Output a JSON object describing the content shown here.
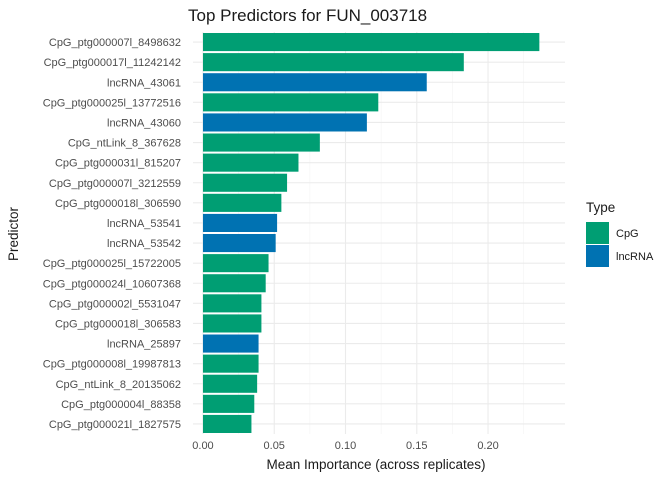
{
  "chart_data": {
    "type": "bar",
    "orientation": "horizontal",
    "title": "Top Predictors for FUN_003718",
    "xlabel": "Mean Importance (across replicates)",
    "ylabel": "Predictor",
    "xlim": [
      -0.007,
      0.254
    ],
    "xticks": [
      0.0,
      0.05,
      0.1,
      0.15,
      0.2
    ],
    "xtick_labels": [
      "0.00",
      "0.05",
      "0.10",
      "0.15",
      "0.20"
    ],
    "grid": true,
    "legend": {
      "title": "Type",
      "placement": "right",
      "entries": [
        {
          "label": "CpG",
          "color": "#009E73"
        },
        {
          "label": "lncRNA",
          "color": "#0072B2"
        }
      ]
    },
    "colors": {
      "CpG": "#009E73",
      "lncRNA": "#0072B2"
    },
    "bars": [
      {
        "label": "CpG_ptg000007l_8498632",
        "value": 0.236,
        "type": "CpG"
      },
      {
        "label": "CpG_ptg000017l_11242142",
        "value": 0.183,
        "type": "CpG"
      },
      {
        "label": "lncRNA_43061",
        "value": 0.157,
        "type": "lncRNA"
      },
      {
        "label": "CpG_ptg000025l_13772516",
        "value": 0.123,
        "type": "CpG"
      },
      {
        "label": "lncRNA_43060",
        "value": 0.115,
        "type": "lncRNA"
      },
      {
        "label": "CpG_ntLink_8_367628",
        "value": 0.082,
        "type": "CpG"
      },
      {
        "label": "CpG_ptg000031l_815207",
        "value": 0.067,
        "type": "CpG"
      },
      {
        "label": "CpG_ptg000007l_3212559",
        "value": 0.059,
        "type": "CpG"
      },
      {
        "label": "CpG_ptg000018l_306590",
        "value": 0.055,
        "type": "CpG"
      },
      {
        "label": "lncRNA_53541",
        "value": 0.052,
        "type": "lncRNA"
      },
      {
        "label": "lncRNA_53542",
        "value": 0.051,
        "type": "lncRNA"
      },
      {
        "label": "CpG_ptg000025l_15722005",
        "value": 0.046,
        "type": "CpG"
      },
      {
        "label": "CpG_ptg000024l_10607368",
        "value": 0.044,
        "type": "CpG"
      },
      {
        "label": "CpG_ptg000002l_5531047",
        "value": 0.041,
        "type": "CpG"
      },
      {
        "label": "CpG_ptg000018l_306583",
        "value": 0.041,
        "type": "CpG"
      },
      {
        "label": "lncRNA_25897",
        "value": 0.039,
        "type": "lncRNA"
      },
      {
        "label": "CpG_ptg000008l_19987813",
        "value": 0.039,
        "type": "CpG"
      },
      {
        "label": "CpG_ntLink_8_20135062",
        "value": 0.038,
        "type": "CpG"
      },
      {
        "label": "CpG_ptg000004l_88358",
        "value": 0.036,
        "type": "CpG"
      },
      {
        "label": "CpG_ptg000021l_1827575",
        "value": 0.034,
        "type": "CpG"
      }
    ]
  }
}
